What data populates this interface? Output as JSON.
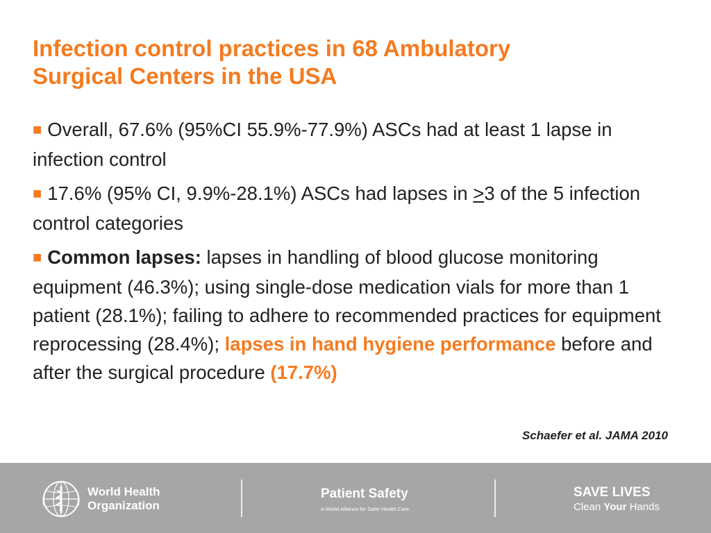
{
  "title": {
    "line1": "Infection control practices in 68 Ambulatory",
    "line2": "Surgical Centers in the USA"
  },
  "bullet_glyph": "■",
  "points": {
    "p1": "Overall, 67.6% (95%CI 55.9%-77.9%) ASCs had at least 1 lapse in infection control",
    "p2_before": "17.6% (95% CI, 9.9%-28.1%) ASCs had lapses in ",
    "p2_underlined": ">",
    "p2_after": "3 of the 5 infection control categories",
    "p3_label": "Common lapses:",
    "p3_text": " lapses in handling of blood glucose monitoring equipment (46.3%); using single-dose medication vials for more than 1 patient (28.1%); failing to adhere to recommended practices for equipment reprocessing (28.4%); ",
    "p3_highlight": "lapses in hand hygiene performance",
    "p3_text2": " before and after the surgical procedure ",
    "p3_highlight2": "(17.7%)"
  },
  "citation": "Schaefer et al. JAMA 2010",
  "footer": {
    "who_line1": "World Health",
    "who_line2": "Organization",
    "ps_title": "Patient Safety",
    "ps_subtitle": "A World Alliance for Safer Health Care",
    "save_title": "SAVE LIVES",
    "save_sub_1": "Clean ",
    "save_sub_2": "Your",
    "save_sub_3": " Hands"
  },
  "colors": {
    "accent": "#f47b20",
    "footer_bg": "#a6a6a6",
    "text": "#222222"
  },
  "icons": [
    "who-emblem-icon"
  ]
}
